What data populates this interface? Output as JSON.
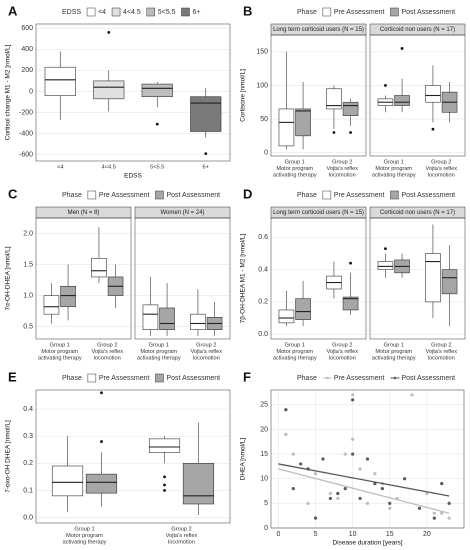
{
  "chart_data": [
    {
      "type": "box",
      "label": "A",
      "legend_title": "EDSS",
      "ylabel": "Cortisol change M1 - M2 [nmol/L]",
      "xlabel": "EDSS",
      "ylim": [
        -660,
        640
      ],
      "yticks": [
        -600,
        -400,
        -200,
        0,
        200,
        400,
        600
      ],
      "facets": [
        {
          "categories": [
            "<4",
            "4<4.5",
            "5<5.5",
            "6+"
          ],
          "series": [
            {
              "colors": [
                "#ffffff",
                "#e0e0e0",
                "#bdbdbd",
                "#7a7a7a"
              ],
              "boxes": [
                {
                  "min": -270,
                  "q1": -40,
                  "median": 110,
                  "q3": 230,
                  "max": 380
                },
                {
                  "min": -190,
                  "q1": -70,
                  "median": 40,
                  "q3": 100,
                  "max": 200,
                  "outliers": [
                    560
                  ]
                },
                {
                  "min": -150,
                  "q1": -50,
                  "median": 30,
                  "q3": 70,
                  "max": 90,
                  "outliers": [
                    -310
                  ]
                },
                {
                  "min": -440,
                  "q1": -380,
                  "median": -110,
                  "q3": -50,
                  "max": 30,
                  "outliers": [
                    -590
                  ]
                }
              ]
            }
          ]
        }
      ]
    },
    {
      "type": "box",
      "label": "B",
      "legend_title": "Phase",
      "ylabel": "Cortisone [nmol/L]",
      "ylim": [
        -5,
        175
      ],
      "yticks": [
        0,
        50,
        100,
        150
      ],
      "facets": [
        {
          "title": "Long term corticoid users (N = 15)",
          "categories": [
            [
              "Group 1",
              "Motor program",
              "activating therapy"
            ],
            [
              "Group 2",
              "Vojta's reflex",
              "locomotion"
            ]
          ],
          "series": [
            {
              "name": "Pre Assessment",
              "color": "#ffffff",
              "boxes": [
                {
                  "min": 5,
                  "q1": 10,
                  "median": 45,
                  "q3": 65,
                  "max": 150
                },
                {
                  "min": 35,
                  "q1": 65,
                  "median": 70,
                  "q3": 95,
                  "max": 100,
                  "outliers": [
                    30
                  ]
                }
              ]
            },
            {
              "name": "Post Assessment",
              "color": "#a6a6a6",
              "boxes": [
                {
                  "min": 5,
                  "q1": 25,
                  "median": 62,
                  "q3": 65,
                  "max": 105
                },
                {
                  "min": 40,
                  "q1": 55,
                  "median": 70,
                  "q3": 75,
                  "max": 80,
                  "outliers": [
                    30
                  ]
                }
              ]
            }
          ]
        },
        {
          "title": "Corticoid non users (N = 17)",
          "categories": [
            [
              "Group 1",
              "Motor program",
              "activating therapy"
            ],
            [
              "Group 2",
              "Vojta's reflex",
              "locomotion"
            ]
          ],
          "series": [
            {
              "name": "Pre Assessment",
              "color": "#ffffff",
              "boxes": [
                {
                  "min": 60,
                  "q1": 70,
                  "median": 75,
                  "q3": 80,
                  "max": 85,
                  "outliers": [
                    100
                  ]
                },
                {
                  "min": 45,
                  "q1": 75,
                  "median": 85,
                  "q3": 100,
                  "max": 130,
                  "outliers": [
                    35
                  ]
                }
              ]
            },
            {
              "name": "Post Assessment",
              "color": "#a6a6a6",
              "boxes": [
                {
                  "min": 60,
                  "q1": 70,
                  "median": 75,
                  "q3": 85,
                  "max": 110,
                  "outliers": [
                    155
                  ]
                },
                {
                  "min": 45,
                  "q1": 60,
                  "median": 75,
                  "q3": 90,
                  "max": 105
                }
              ]
            }
          ]
        }
      ]
    },
    {
      "type": "box",
      "label": "C",
      "legend_title": "Phase",
      "ylabel": "7α-OH-DHEA [nmol/L]",
      "ylim": [
        0.3,
        2.25
      ],
      "yticks": [
        0.5,
        {
          "value": 1,
          "label": "1.0"
        },
        1.5,
        {
          "value": 2,
          "label": "2.0"
        }
      ],
      "facets": [
        {
          "title": "Men (N = 8)",
          "categories": [
            [
              "Group 1",
              "Motor program",
              "activating therapy"
            ],
            [
              "Group 2",
              "Vojta's reflex",
              "locomotion"
            ]
          ],
          "series": [
            {
              "name": "Pre Assessment",
              "color": "#ffffff",
              "boxes": [
                {
                  "min": 0.55,
                  "q1": 0.7,
                  "median": 0.82,
                  "q3": 1.0,
                  "max": 1.2
                },
                {
                  "min": 1.2,
                  "q1": 1.3,
                  "median": 1.4,
                  "q3": 1.6,
                  "max": 2.1
                }
              ]
            },
            {
              "name": "Post Assessment",
              "color": "#a6a6a6",
              "boxes": [
                {
                  "min": 0.6,
                  "q1": 0.82,
                  "median": 1.0,
                  "q3": 1.15,
                  "max": 1.5
                },
                {
                  "min": 0.8,
                  "q1": 1.0,
                  "median": 1.15,
                  "q3": 1.3,
                  "max": 1.5
                }
              ]
            }
          ]
        },
        {
          "title": "Women (N = 24)",
          "categories": [
            [
              "Group 1",
              "Motor program",
              "activating therapy"
            ],
            [
              "Group 2",
              "Vojta's reflex",
              "locomotion"
            ]
          ],
          "series": [
            {
              "name": "Pre Assessment",
              "color": "#ffffff",
              "boxes": [
                {
                  "min": 0.35,
                  "q1": 0.45,
                  "median": 0.7,
                  "q3": 0.85,
                  "max": 1.3
                },
                {
                  "min": 0.35,
                  "q1": 0.45,
                  "median": 0.55,
                  "q3": 0.7,
                  "max": 1.1
                }
              ]
            },
            {
              "name": "Post Assessment",
              "color": "#a6a6a6",
              "boxes": [
                {
                  "min": 0.35,
                  "q1": 0.45,
                  "median": 0.55,
                  "q3": 0.8,
                  "max": 1.2
                },
                {
                  "min": 0.35,
                  "q1": 0.45,
                  "median": 0.55,
                  "q3": 0.65,
                  "max": 0.9
                }
              ]
            }
          ]
        }
      ]
    },
    {
      "type": "box",
      "label": "D",
      "legend_title": "Phase",
      "ylabel": "7β-OH-DHEA M1 - M2 [nmol/L]",
      "ylim": [
        -0.03,
        0.72
      ],
      "yticks": [
        {
          "value": 0,
          "label": "0.0"
        },
        0.2,
        0.4,
        0.6
      ],
      "facets": [
        {
          "title": "Long term corticoid users (N = 15)",
          "categories": [
            [
              "Group 1",
              "Motor program",
              "activating therapy"
            ],
            [
              "Group 2",
              "Vojta's reflex",
              "locomotion"
            ]
          ],
          "series": [
            {
              "name": "Pre Assessment",
              "color": "#ffffff",
              "boxes": [
                {
                  "min": 0.05,
                  "q1": 0.07,
                  "median": 0.1,
                  "q3": 0.15,
                  "max": 0.27
                },
                {
                  "min": 0.22,
                  "q1": 0.28,
                  "median": 0.32,
                  "q3": 0.36,
                  "max": 0.45
                }
              ]
            },
            {
              "name": "Post Assessment",
              "color": "#a6a6a6",
              "boxes": [
                {
                  "min": 0.05,
                  "q1": 0.09,
                  "median": 0.14,
                  "q3": 0.22,
                  "max": 0.33
                },
                {
                  "min": 0.12,
                  "q1": 0.15,
                  "median": 0.22,
                  "q3": 0.23,
                  "max": 0.38,
                  "outliers": [
                    0.44
                  ]
                }
              ]
            }
          ]
        },
        {
          "title": "Corticoid non users (N = 17)",
          "categories": [
            [
              "Group 1",
              "Motor program",
              "activating therapy"
            ],
            [
              "Group 2",
              "Vojta's reflex",
              "locomotion"
            ]
          ],
          "series": [
            {
              "name": "Pre Assessment",
              "color": "#ffffff",
              "boxes": [
                {
                  "min": 0.35,
                  "q1": 0.4,
                  "median": 0.42,
                  "q3": 0.45,
                  "max": 0.5,
                  "outliers": [
                    0.53
                  ]
                },
                {
                  "min": 0.1,
                  "q1": 0.2,
                  "median": 0.45,
                  "q3": 0.5,
                  "max": 0.68
                }
              ]
            },
            {
              "name": "Post Assessment",
              "color": "#a6a6a6",
              "boxes": [
                {
                  "min": 0.35,
                  "q1": 0.38,
                  "median": 0.42,
                  "q3": 0.46,
                  "max": 0.5
                },
                {
                  "min": 0.05,
                  "q1": 0.25,
                  "median": 0.35,
                  "q3": 0.4,
                  "max": 0.55
                }
              ]
            }
          ]
        }
      ]
    },
    {
      "type": "box",
      "label": "E",
      "legend_title": "Phase",
      "ylabel": "7-oxo-OH DHEA [nmol/L]",
      "ylim": [
        -0.02,
        0.47
      ],
      "yticks": [
        {
          "value": 0,
          "label": "0.0"
        },
        0.1,
        0.2,
        0.3,
        0.4
      ],
      "facets": [
        {
          "categories": [
            [
              "Group 1",
              "Motor program",
              "activating therapy"
            ],
            [
              "Group 2",
              "Vojta's reflex",
              "locomotion"
            ]
          ],
          "series": [
            {
              "name": "Pre Assessment",
              "color": "#ffffff",
              "boxes": [
                {
                  "min": 0.02,
                  "q1": 0.08,
                  "median": 0.13,
                  "q3": 0.19,
                  "max": 0.3
                },
                {
                  "min": 0.2,
                  "q1": 0.24,
                  "median": 0.26,
                  "q3": 0.29,
                  "max": 0.3,
                  "outliers": [
                    0.15,
                    0.12,
                    0.1
                  ]
                }
              ]
            },
            {
              "name": "Post Assessment",
              "color": "#a6a6a6",
              "boxes": [
                {
                  "min": 0.04,
                  "q1": 0.09,
                  "median": 0.13,
                  "q3": 0.16,
                  "max": 0.24,
                  "outliers": [
                    0.28,
                    0.46
                  ]
                },
                {
                  "min": 0.01,
                  "q1": 0.05,
                  "median": 0.08,
                  "q3": 0.2,
                  "max": 0.35
                }
              ]
            }
          ]
        }
      ]
    },
    {
      "type": "scatter",
      "label": "F",
      "legend_title": "Phase",
      "ylabel": "DHEA [nmol/L]",
      "xlabel": "Disease duration [years]",
      "xlim": [
        -1,
        25
      ],
      "xticks": [
        0,
        5,
        10,
        15,
        20
      ],
      "ylim": [
        0,
        28
      ],
      "yticks": [
        0,
        5,
        10,
        15,
        20,
        25
      ],
      "series": [
        {
          "name": "Pre Assessment",
          "color": "#bdbdbd",
          "x": [
            1,
            1,
            2,
            4,
            5,
            7,
            8,
            9,
            10,
            10,
            11,
            12,
            13,
            14,
            15,
            16,
            18,
            20,
            21,
            22,
            23
          ],
          "y": [
            24,
            19,
            15,
            5,
            11,
            7,
            6,
            15,
            27,
            18,
            12,
            5,
            11,
            9,
            4,
            6,
            27,
            7,
            3,
            3,
            2
          ],
          "trend": {
            "x": [
              0,
              23
            ],
            "y": [
              12,
              3
            ]
          }
        },
        {
          "name": "Post Assessment",
          "color": "#595959",
          "x": [
            1,
            2,
            3,
            4,
            5,
            6,
            7,
            8,
            9,
            10,
            10,
            11,
            12,
            13,
            14,
            15,
            17,
            19,
            21,
            22,
            23
          ],
          "y": [
            24,
            8,
            13,
            12,
            2,
            14,
            6,
            7,
            8,
            26,
            15,
            6,
            14,
            9,
            8,
            5,
            10,
            4,
            2,
            9,
            5
          ],
          "trend": {
            "x": [
              0,
              23
            ],
            "y": [
              13,
              6.5
            ]
          }
        }
      ]
    }
  ]
}
